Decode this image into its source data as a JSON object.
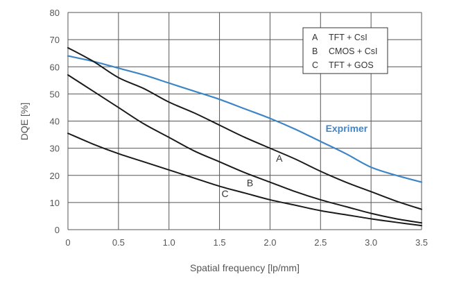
{
  "chart_data": {
    "type": "line",
    "xlabel": "Spatial frequency [lp/mm]",
    "ylabel": "DQE [%]",
    "xlim": [
      0,
      3.5
    ],
    "ylim": [
      0,
      80
    ],
    "x_ticks": [
      "0",
      "0.5",
      "1.0",
      "1.5",
      "2.0",
      "2.5",
      "3.0",
      "3.5"
    ],
    "y_ticks": [
      "0",
      "10",
      "20",
      "30",
      "40",
      "50",
      "60",
      "70",
      "80"
    ],
    "grid": true,
    "legend": {
      "placement": "top-right",
      "entries": [
        {
          "key": "A",
          "text": "TFT + CsI"
        },
        {
          "key": "B",
          "text": "CMOS + CsI"
        },
        {
          "key": "C",
          "text": "TFT + GOS"
        }
      ]
    },
    "series": [
      {
        "name": "Exprimer",
        "color": "#3d85c6",
        "x": [
          0,
          0.25,
          0.5,
          0.75,
          1.0,
          1.25,
          1.5,
          1.75,
          2.0,
          2.25,
          2.5,
          2.75,
          3.0,
          3.25,
          3.5
        ],
        "y": [
          64,
          62,
          59.5,
          57,
          54,
          51,
          48,
          44.5,
          41,
          37,
          32.5,
          28,
          23,
          20,
          17.5
        ]
      },
      {
        "name": "A",
        "color": "#1a1a1a",
        "x": [
          0,
          0.25,
          0.5,
          0.75,
          1.0,
          1.25,
          1.5,
          1.75,
          2.0,
          2.25,
          2.5,
          2.75,
          3.0,
          3.25,
          3.5
        ],
        "y": [
          67,
          62,
          56,
          52,
          47,
          43,
          38.5,
          34,
          30,
          26,
          21.5,
          17.5,
          14,
          10.5,
          7.5
        ]
      },
      {
        "name": "B",
        "color": "#1a1a1a",
        "x": [
          0,
          0.25,
          0.5,
          0.75,
          1.0,
          1.25,
          1.5,
          1.75,
          2.0,
          2.25,
          2.5,
          2.75,
          3.0,
          3.25,
          3.5
        ],
        "y": [
          57,
          51,
          45,
          39,
          34,
          29,
          25,
          21,
          17.5,
          14,
          11,
          8.5,
          6,
          4,
          2.5
        ]
      },
      {
        "name": "C",
        "color": "#1a1a1a",
        "x": [
          0,
          0.25,
          0.5,
          0.75,
          1.0,
          1.25,
          1.5,
          1.75,
          2.0,
          2.25,
          2.5,
          2.75,
          3.0,
          3.25,
          3.5
        ],
        "y": [
          35.5,
          31.5,
          28,
          25,
          22,
          19,
          16,
          13.5,
          11,
          9,
          7,
          5.5,
          4,
          2.7,
          1.5
        ]
      }
    ],
    "annotations": [
      {
        "text": "Exprimer",
        "x": 2.55,
        "y": 36,
        "color": "#3d85c6"
      },
      {
        "text": "A",
        "x": 2.06,
        "y": 25
      },
      {
        "text": "B",
        "x": 1.77,
        "y": 16
      },
      {
        "text": "C",
        "x": 1.52,
        "y": 12
      }
    ]
  }
}
